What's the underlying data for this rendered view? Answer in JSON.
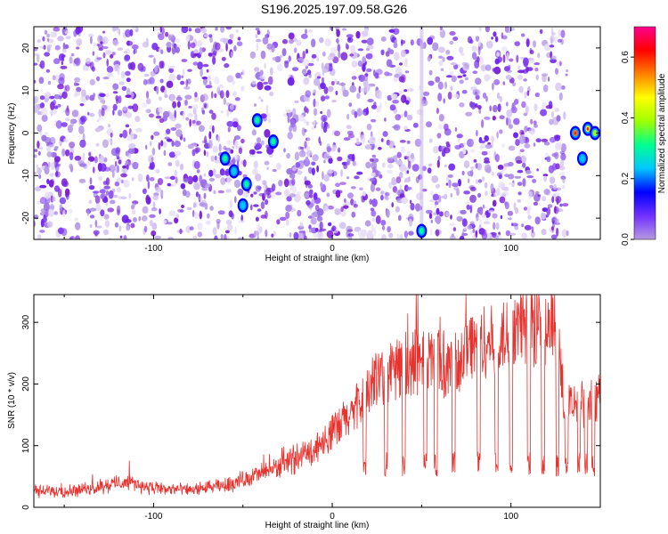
{
  "title": "S196.2025.197.09.58.G26",
  "chart_data": [
    {
      "type": "heatmap",
      "xlabel": "Height of straight line (km)",
      "ylabel": "Frequency (Hz)",
      "xlim": [
        -167,
        150
      ],
      "ylim": [
        -25,
        25
      ],
      "xticks": [
        -100,
        0,
        100
      ],
      "yticks": [
        -20,
        -10,
        0,
        10,
        20
      ],
      "colorbar": {
        "label": "Normalized spectral amplitude",
        "range": [
          0,
          0.7
        ],
        "ticks": [
          "0.0",
          "0.2",
          "0.4",
          "0.6"
        ],
        "stops": [
          "#b79ae0",
          "#7030ff",
          "#0000ff",
          "#00c8ff",
          "#00ff90",
          "#a0ff00",
          "#ffff00",
          "#ff8000",
          "#ff0000",
          "#ff0090"
        ]
      },
      "features": [
        {
          "x": -60,
          "y": -6,
          "amp": 0.3
        },
        {
          "x": -55,
          "y": -9,
          "amp": 0.25
        },
        {
          "x": -48,
          "y": -12,
          "amp": 0.3
        },
        {
          "x": -50,
          "y": -17,
          "amp": 0.2
        },
        {
          "x": -42,
          "y": 3,
          "amp": 0.28
        },
        {
          "x": -33,
          "y": -2,
          "amp": 0.3
        },
        {
          "x": 50,
          "y": -23,
          "amp": 0.3
        },
        {
          "x": 136,
          "y": 0,
          "amp": 0.55
        },
        {
          "x": 140,
          "y": -6,
          "amp": 0.25
        },
        {
          "x": 143,
          "y": 1,
          "amp": 0.45
        },
        {
          "x": 147,
          "y": 0,
          "amp": 0.4
        }
      ]
    },
    {
      "type": "line",
      "xlabel": "Height of straight line (km)",
      "ylabel": "SNR (10 * v/v)",
      "xlim": [
        -167,
        150
      ],
      "ylim": [
        0,
        345
      ],
      "xticks": [
        -100,
        0,
        100
      ],
      "yticks": [
        0,
        100,
        200,
        300
      ],
      "color": "#e8322e",
      "x": [
        -167,
        -140,
        -115,
        -100,
        -80,
        -60,
        -50,
        -40,
        -25,
        -10,
        0,
        10,
        18,
        25,
        35,
        50,
        60,
        68,
        75,
        90,
        100,
        110,
        118,
        125,
        130,
        135,
        145,
        150
      ],
      "y": [
        25,
        28,
        42,
        30,
        28,
        35,
        45,
        55,
        70,
        95,
        120,
        150,
        175,
        210,
        225,
        235,
        240,
        215,
        265,
        270,
        280,
        300,
        295,
        280,
        175,
        160,
        180,
        185
      ]
    }
  ]
}
